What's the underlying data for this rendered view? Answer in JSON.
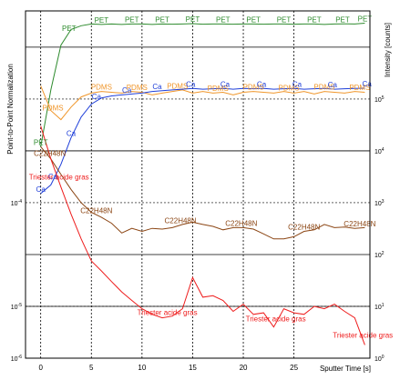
{
  "chart_data": {
    "type": "line",
    "xlabel": "Sputter Time [s]",
    "ylabel_left": "Point-to-Point Normalization",
    "ylabel_right": "Intensity [counts]",
    "x_ticks": [
      "0",
      "5",
      "10",
      "15",
      "20",
      "25"
    ],
    "x_tick_values": [
      0,
      5,
      10,
      15,
      20,
      25
    ],
    "xlim": [
      -1.5,
      32.5
    ],
    "left_ticks": [
      {
        "base": "10",
        "exp": "-4",
        "value": 0.0001
      },
      {
        "base": "10",
        "exp": "-5",
        "value": 1e-05
      },
      {
        "base": "10",
        "exp": "-6",
        "value": 1e-06
      }
    ],
    "right_ticks": [
      {
        "base": "10",
        "exp": "5",
        "value": 100000
      },
      {
        "base": "10",
        "exp": "4",
        "value": 10000
      },
      {
        "base": "10",
        "exp": "3",
        "value": 1000
      },
      {
        "base": "10",
        "exp": "2",
        "value": 100
      },
      {
        "base": "10",
        "exp": "1",
        "value": 10
      },
      {
        "base": "10",
        "exp": "0",
        "value": 1
      }
    ],
    "ylim_right_log10": [
      0,
      6.7
    ],
    "y_scale": "log",
    "grid": "dashed vertical at x ticks, solid horizontal at decades",
    "series": [
      {
        "name": "PET",
        "color": "#2e8b2e",
        "x": [
          0,
          1,
          2,
          3,
          4,
          5,
          6,
          7,
          8,
          9,
          10,
          11,
          12,
          13,
          14,
          15,
          16,
          17,
          18,
          19,
          20,
          21,
          22,
          23,
          24,
          25,
          26,
          27,
          28,
          29,
          30,
          31,
          32
        ],
        "y": [
          12000,
          150000,
          1100000,
          2200000,
          2600000,
          2800000,
          2750000,
          2800000,
          2750000,
          2800000,
          2800000,
          2750000,
          2800000,
          2780000,
          2800000,
          2850000,
          2780000,
          2800000,
          2800000,
          2780000,
          2800000,
          2800000,
          2780000,
          2800000,
          2800000,
          2780000,
          2800000,
          2800000,
          2750000,
          2800000,
          2820000,
          2800000,
          2900000
        ],
        "labels": [
          {
            "text": "PET",
            "x": 0
          },
          {
            "text": "PET",
            "x": 2.8
          },
          {
            "text": "PET",
            "x": 6
          },
          {
            "text": "PET",
            "x": 9
          },
          {
            "text": "PET",
            "x": 12
          },
          {
            "text": "PET",
            "x": 15
          },
          {
            "text": "PET",
            "x": 18
          },
          {
            "text": "PET",
            "x": 21
          },
          {
            "text": "PET",
            "x": 24
          },
          {
            "text": "PET",
            "x": 27
          },
          {
            "text": "PET",
            "x": 29.8
          },
          {
            "text": "PET",
            "x": 32
          }
        ]
      },
      {
        "name": "PDMS",
        "color": "#f0962a",
        "x": [
          0,
          1,
          2,
          3,
          4,
          5,
          6,
          7,
          8,
          9,
          10,
          11,
          12,
          13,
          14,
          15,
          16,
          17,
          18,
          19,
          20,
          21,
          22,
          23,
          24,
          25,
          26,
          27,
          28,
          29,
          30,
          31,
          32
        ],
        "y": [
          180000,
          60000,
          40000,
          70000,
          110000,
          130000,
          140000,
          135000,
          130000,
          140000,
          135000,
          120000,
          130000,
          140000,
          150000,
          130000,
          140000,
          130000,
          135000,
          120000,
          135000,
          140000,
          135000,
          130000,
          140000,
          130000,
          140000,
          125000,
          140000,
          135000,
          130000,
          140000,
          135000
        ],
        "labels": [
          {
            "text": "PDMS",
            "x": 1.2
          },
          {
            "text": "PDMS",
            "x": 6
          },
          {
            "text": "PDMS",
            "x": 9.5
          },
          {
            "text": "PDMS",
            "x": 13.5
          },
          {
            "text": "PDMS",
            "x": 17.5
          },
          {
            "text": "PDMS",
            "x": 21
          },
          {
            "text": "PDMS",
            "x": 24.5
          },
          {
            "text": "PDMS",
            "x": 28
          },
          {
            "text": "PDMS",
            "x": 31.5
          }
        ]
      },
      {
        "name": "Ca",
        "color": "#1f3fd9",
        "x": [
          0,
          1,
          2,
          3,
          4,
          5,
          6,
          7,
          8,
          9,
          10,
          11,
          12,
          13,
          14,
          15,
          16,
          17,
          18,
          19,
          20,
          21,
          22,
          23,
          24,
          25,
          26,
          27,
          28,
          29,
          30,
          31,
          32
        ],
        "y": [
          1500,
          2200,
          5500,
          18000,
          45000,
          80000,
          105000,
          115000,
          120000,
          125000,
          130000,
          140000,
          145000,
          150000,
          155000,
          160000,
          155000,
          158000,
          160000,
          155000,
          160000,
          158000,
          160000,
          155000,
          158000,
          160000,
          155000,
          158000,
          160000,
          155000,
          158000,
          160000,
          162000
        ],
        "labels": [
          {
            "text": "Ca",
            "x": 0
          },
          {
            "text": "Ca",
            "x": 1.2
          },
          {
            "text": "Ca",
            "x": 3
          },
          {
            "text": "Ca",
            "x": 5.5
          },
          {
            "text": "Ca",
            "x": 8.5
          },
          {
            "text": "Ca",
            "x": 11.5
          },
          {
            "text": "Ca",
            "x": 14.8
          },
          {
            "text": "Ca",
            "x": 18.2
          },
          {
            "text": "Ca",
            "x": 21.8
          },
          {
            "text": "Ca",
            "x": 25.3
          },
          {
            "text": "Ca",
            "x": 28.8
          },
          {
            "text": "Ca",
            "x": 32.2
          }
        ]
      },
      {
        "name": "C22H48N",
        "color": "#8b4513",
        "x": [
          0,
          1,
          2,
          3,
          4,
          5,
          6,
          7,
          8,
          9,
          10,
          11,
          12,
          13,
          14,
          15,
          16,
          17,
          18,
          19,
          20,
          21,
          22,
          23,
          24,
          25,
          26,
          27,
          28,
          29,
          30,
          31,
          32
        ],
        "y": [
          12000,
          7000,
          3500,
          1800,
          1000,
          650,
          520,
          400,
          260,
          320,
          280,
          320,
          310,
          330,
          380,
          420,
          380,
          350,
          300,
          330,
          330,
          310,
          250,
          200,
          200,
          220,
          280,
          300,
          380,
          330,
          340,
          320,
          330
        ],
        "labels": [
          {
            "text": "C22H48N",
            "x": 0.9
          },
          {
            "text": "C22H48N",
            "x": 5.5
          },
          {
            "text": "C22H48N",
            "x": 13.8
          },
          {
            "text": "C22H48N",
            "x": 19.8
          },
          {
            "text": "C22H48N",
            "x": 26
          },
          {
            "text": "C22H48N",
            "x": 31.5
          }
        ]
      },
      {
        "name": "Triester acide gras",
        "color": "#ee1c1c",
        "x": [
          0,
          1,
          2,
          3,
          4,
          5,
          6,
          7,
          8,
          9,
          10,
          11,
          12,
          13,
          14,
          15,
          16,
          17,
          18,
          19,
          20,
          21,
          22,
          23,
          24,
          25,
          26,
          27,
          28,
          29,
          30,
          31,
          32
        ],
        "y": [
          30000,
          7000,
          2000,
          600,
          200,
          75,
          48,
          30,
          19,
          13,
          9,
          7,
          6,
          6.5,
          9,
          36,
          15,
          16,
          13,
          8,
          11,
          7,
          7.5,
          4,
          9,
          7.5,
          7,
          10,
          9,
          11,
          8,
          6,
          1.8
        ],
        "labels": [
          {
            "text": "Triester acide gras",
            "x": 1.8
          },
          {
            "text": "Triester acide gras",
            "x": 12.5
          },
          {
            "text": "Triester acide gras",
            "x": 23.2
          },
          {
            "text": "Triester acide gras",
            "x": 31.8
          }
        ]
      }
    ]
  }
}
